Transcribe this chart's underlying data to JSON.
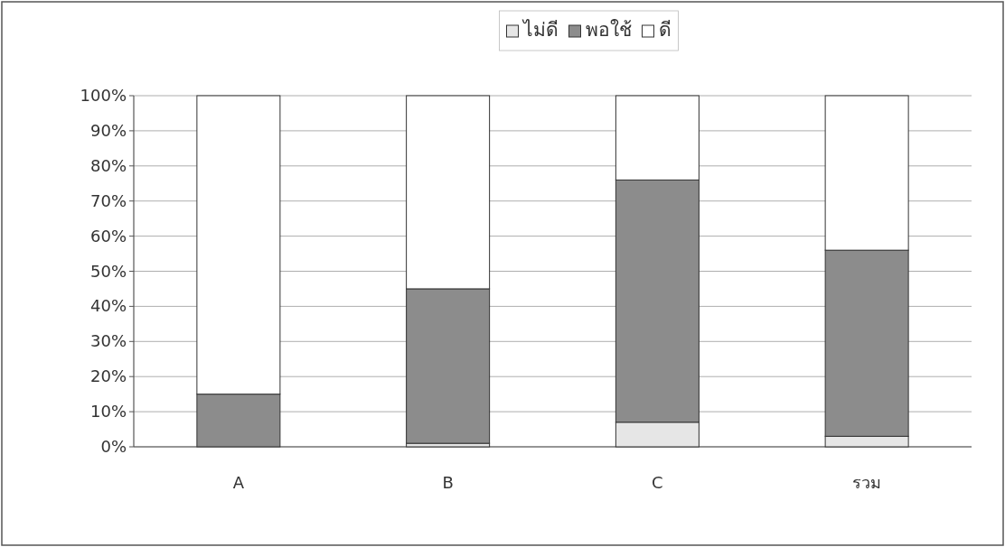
{
  "chart_data": {
    "type": "bar",
    "stacked": true,
    "categories": [
      "A",
      "B",
      "C",
      "รวม"
    ],
    "series": [
      {
        "name": "ไม่ดี",
        "color": "#e6e6e6",
        "values": [
          0,
          1,
          7,
          3
        ]
      },
      {
        "name": "พอใช้",
        "color": "#8c8c8c",
        "values": [
          15,
          44,
          69,
          53
        ]
      },
      {
        "name": "ดี",
        "color": "#ffffff",
        "values": [
          85,
          55,
          24,
          44
        ]
      }
    ],
    "ylim": [
      0,
      100
    ],
    "yticks": [
      {
        "value": 0,
        "label": "0%"
      },
      {
        "value": 10,
        "label": "10%"
      },
      {
        "value": 20,
        "label": "20%"
      },
      {
        "value": 30,
        "label": "30%"
      },
      {
        "value": 40,
        "label": "40%"
      },
      {
        "value": 50,
        "label": "50%"
      },
      {
        "value": 60,
        "label": "60%"
      },
      {
        "value": 70,
        "label": "70%"
      },
      {
        "value": 80,
        "label": "80%"
      },
      {
        "value": 90,
        "label": "90%"
      },
      {
        "value": 100,
        "label": "100%"
      }
    ],
    "grid": "y",
    "legend": "top"
  }
}
